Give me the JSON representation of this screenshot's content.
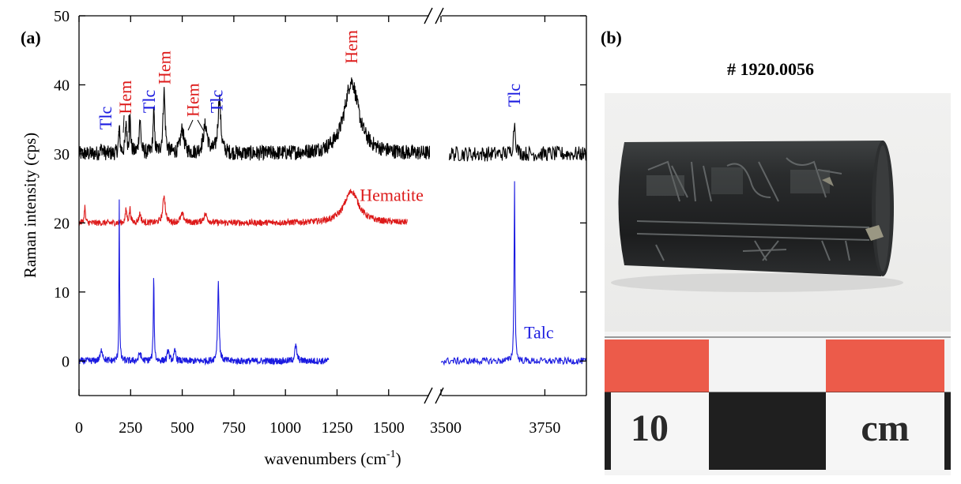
{
  "panel_a_label": "(a)",
  "panel_b_label": "(b)",
  "chart_data": {
    "type": "line",
    "xlabel_text": "wavenumbers (cm",
    "xlabel_sup": "-1",
    "xlabel_close": ")",
    "ylabel": "Raman intensity (cps)",
    "ylim": [
      -5,
      50
    ],
    "y_ticks": [
      0,
      10,
      20,
      30,
      40,
      50
    ],
    "x_segments": [
      {
        "range": [
          0,
          1700
        ],
        "ticks": [
          0,
          250,
          500,
          750,
          1000,
          1250,
          1500
        ]
      },
      {
        "range": [
          3500,
          3850
        ],
        "ticks": [
          3500,
          3750
        ]
      }
    ],
    "grid": false,
    "series": [
      {
        "name": "",
        "color": "#000000",
        "baseline": 30,
        "noise": 1.1,
        "pieces": [
          [
            0,
            1700
          ],
          [
            3520,
            3850
          ]
        ],
        "peaks": [
          [
            110,
            0.8,
            7
          ],
          [
            195,
            3.5,
            4
          ],
          [
            228,
            4.5,
            4
          ],
          [
            247,
            5,
            4
          ],
          [
            295,
            5,
            5
          ],
          [
            362,
            6,
            4
          ],
          [
            412,
            9,
            6
          ],
          [
            500,
            3.5,
            10
          ],
          [
            612,
            4,
            12
          ],
          [
            680,
            8,
            8
          ],
          [
            1320,
            10.5,
            42
          ],
          [
            3677,
            4.5,
            3
          ]
        ]
      },
      {
        "name": "Hematite",
        "color": "#dd1a1a",
        "baseline": 20,
        "noise": 0.45,
        "pieces": [
          [
            0,
            1590
          ]
        ],
        "peaks": [
          [
            28,
            2.5,
            3
          ],
          [
            228,
            2,
            4
          ],
          [
            247,
            2,
            4
          ],
          [
            295,
            1.3,
            6
          ],
          [
            412,
            4,
            7
          ],
          [
            500,
            1.2,
            10
          ],
          [
            612,
            1.2,
            11
          ],
          [
            1320,
            4.6,
            42
          ]
        ]
      },
      {
        "name": "Talc",
        "color": "#1a1ae0",
        "baseline": 0,
        "noise": 0.5,
        "pieces": [
          [
            0,
            1210
          ],
          [
            3500,
            3850
          ]
        ],
        "peaks": [
          [
            110,
            1.6,
            7
          ],
          [
            195,
            23.5,
            1.8
          ],
          [
            295,
            1.2,
            6
          ],
          [
            362,
            12,
            2.5
          ],
          [
            432,
            1.6,
            5
          ],
          [
            465,
            1.5,
            5
          ],
          [
            675,
            11.5,
            4
          ],
          [
            1050,
            2.2,
            6
          ],
          [
            3677,
            26.5,
            1.3
          ]
        ]
      }
    ],
    "annotations": [
      {
        "text": "Tlc",
        "color": "#1a1ae0",
        "x": 130,
        "y": 35.2,
        "rotate": true
      },
      {
        "text": "Hem",
        "color": "#dd1a1a",
        "x": 225,
        "y": 38.2,
        "rotate": true
      },
      {
        "text": "Tlc",
        "color": "#1a1ae0",
        "x": 340,
        "y": 37.6,
        "rotate": true
      },
      {
        "text": "Hem",
        "color": "#dd1a1a",
        "x": 415,
        "y": 42.5,
        "rotate": true
      },
      {
        "text": "Hem",
        "color": "#dd1a1a",
        "x": 553,
        "y": 37.8,
        "rotate": true
      },
      {
        "text": "Tlc",
        "color": "#1a1ae0",
        "x": 668,
        "y": 37.6,
        "rotate": true
      },
      {
        "text": "Hem",
        "color": "#dd1a1a",
        "x": 1320,
        "y": 45.5,
        "rotate": true
      },
      {
        "text": "Tlc",
        "color": "#1a1ae0",
        "x": 3677,
        "y": 38.5,
        "rotate": true
      },
      {
        "text": "Hematite",
        "color": "#dd1a1a",
        "x": 1360,
        "y": 23.2,
        "rotate": false
      },
      {
        "text": "Talc",
        "color": "#1a1ae0",
        "x": 3700,
        "y": 3.3,
        "rotate": false
      }
    ]
  },
  "photo": {
    "title": "# 1920.0056",
    "ruler_number": "10",
    "ruler_unit": "cm"
  }
}
